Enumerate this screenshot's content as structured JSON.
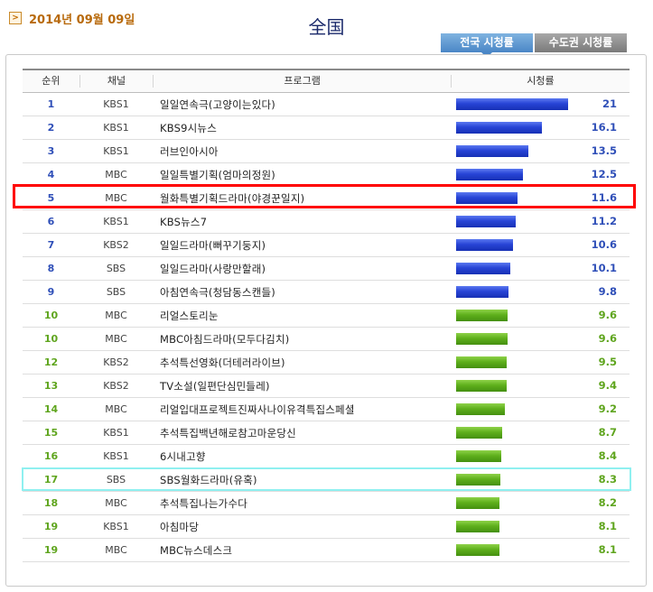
{
  "header": {
    "date": "2014년 09월 09일",
    "region_title": "全国",
    "tabs": [
      {
        "label": "전국 시청률",
        "active": true
      },
      {
        "label": "수도권 시청률",
        "active": false
      }
    ]
  },
  "table": {
    "columns": [
      "순위",
      "채널",
      "프로그램",
      "시청률"
    ],
    "rows": [
      {
        "rank": "1",
        "channel": "KBS1",
        "program": "일일연속극(고양이는있다)",
        "rating": "21"
      },
      {
        "rank": "2",
        "channel": "KBS1",
        "program": "KBS9시뉴스",
        "rating": "16.1"
      },
      {
        "rank": "3",
        "channel": "KBS1",
        "program": "러브인아시아",
        "rating": "13.5"
      },
      {
        "rank": "4",
        "channel": "MBC",
        "program": "일일특별기획(엄마의정원)",
        "rating": "12.5"
      },
      {
        "rank": "5",
        "channel": "MBC",
        "program": "월화특별기획드라마(야경꾼일지)",
        "rating": "11.6"
      },
      {
        "rank": "6",
        "channel": "KBS1",
        "program": "KBS뉴스7",
        "rating": "11.2"
      },
      {
        "rank": "7",
        "channel": "KBS2",
        "program": "일일드라마(뻐꾸기둥지)",
        "rating": "10.6"
      },
      {
        "rank": "8",
        "channel": "SBS",
        "program": "일일드라마(사랑만할래)",
        "rating": "10.1"
      },
      {
        "rank": "9",
        "channel": "SBS",
        "program": "아침연속극(청담동스캔들)",
        "rating": "9.8"
      },
      {
        "rank": "10",
        "channel": "MBC",
        "program": "리얼스토리눈",
        "rating": "9.6"
      },
      {
        "rank": "10",
        "channel": "MBC",
        "program": "MBC아침드라마(모두다김치)",
        "rating": "9.6"
      },
      {
        "rank": "12",
        "channel": "KBS2",
        "program": "추석특선영화(더테러라이브)",
        "rating": "9.5"
      },
      {
        "rank": "13",
        "channel": "KBS2",
        "program": "TV소설(일편단심민들레)",
        "rating": "9.4"
      },
      {
        "rank": "14",
        "channel": "MBC",
        "program": "리얼입대프로젝트진짜사나이유격특집스페셜",
        "rating": "9.2"
      },
      {
        "rank": "15",
        "channel": "KBS1",
        "program": "추석특집백년해로참고마운당신",
        "rating": "8.7"
      },
      {
        "rank": "16",
        "channel": "KBS1",
        "program": "6시내고향",
        "rating": "8.4"
      },
      {
        "rank": "17",
        "channel": "SBS",
        "program": "SBS월화드라마(유혹)",
        "rating": "8.3"
      },
      {
        "rank": "18",
        "channel": "MBC",
        "program": "추석특집나는가수다",
        "rating": "8.2"
      },
      {
        "rank": "19",
        "channel": "KBS1",
        "program": "아침마당",
        "rating": "8.1"
      },
      {
        "rank": "19",
        "channel": "MBC",
        "program": "MBC뉴스데스크",
        "rating": "8.1"
      }
    ]
  },
  "colors": {
    "top_rank_bar": "#2744d6",
    "lower_rank_bar": "#5fb01c",
    "highlight_red": "#ff0000",
    "highlight_cyan": "#8ff0f0"
  },
  "icons": {
    "date_marker": "chevron-right-icon"
  }
}
